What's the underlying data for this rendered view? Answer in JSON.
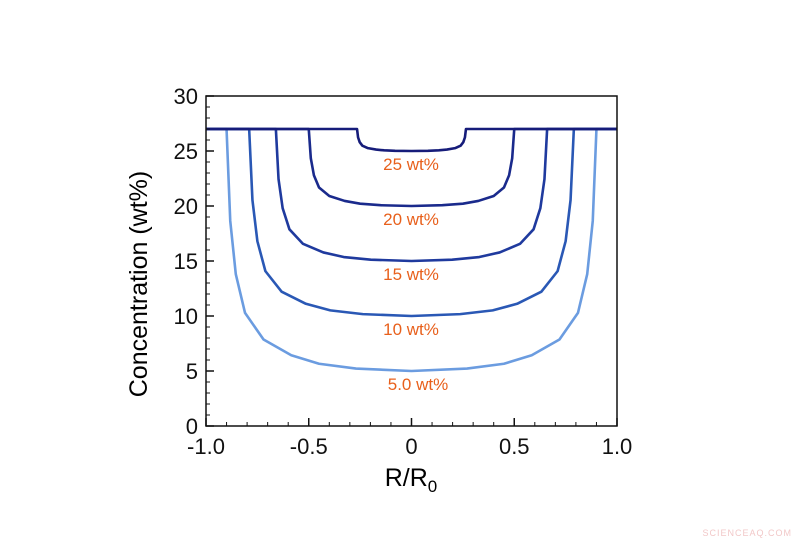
{
  "chart_data": {
    "type": "line",
    "xlabel": "R/R",
    "xlabel_subscript": "0",
    "ylabel": "Concentration (wt%)",
    "xlim": [
      -1,
      1
    ],
    "ylim": [
      0,
      30
    ],
    "xticks": [
      {
        "value": -1,
        "label": "-1.0"
      },
      -0.5,
      0,
      0.5,
      {
        "value": 1,
        "label": "1.0"
      }
    ],
    "yticks": [
      0,
      5,
      10,
      15,
      20,
      25,
      30
    ],
    "annotations": [
      "25 wt%",
      "20 wt%",
      "15 wt%",
      "10 wt%",
      "5.0 wt%"
    ],
    "watermark": "SCIENCEAQ.COM",
    "series": [
      {
        "color": "#6b9ce0",
        "x": [
          -1,
          -0.9,
          -0.882,
          -0.855,
          -0.81,
          -0.72,
          -0.585,
          -0.45,
          -0.27,
          0,
          0.27,
          0.45,
          0.585,
          0.72,
          0.81,
          0.855,
          0.882,
          0.9,
          1
        ],
        "values": [
          27,
          27,
          18.64,
          13.8,
          10.28,
          7.86,
          6.43,
          5.66,
          5.22,
          5,
          5.22,
          5.66,
          6.43,
          7.86,
          10.28,
          13.8,
          18.64,
          27,
          27
        ]
      },
      {
        "color": "#2a58b5",
        "x": [
          -1,
          -0.79,
          -0.774,
          -0.75,
          -0.711,
          -0.632,
          -0.514,
          -0.395,
          -0.237,
          0,
          0.237,
          0.395,
          0.514,
          0.632,
          0.711,
          0.75,
          0.774,
          0.79,
          1
        ],
        "values": [
          27,
          27,
          20.54,
          16.8,
          14.08,
          12.21,
          11.11,
          10.51,
          10.17,
          10,
          10.17,
          10.51,
          11.11,
          12.21,
          14.08,
          16.8,
          20.54,
          27,
          27
        ]
      },
      {
        "color": "#1f3a9e",
        "x": [
          -1,
          -0.66,
          -0.647,
          -0.627,
          -0.594,
          -0.528,
          -0.429,
          -0.33,
          -0.198,
          0,
          0.198,
          0.33,
          0.429,
          0.528,
          0.594,
          0.627,
          0.647,
          0.66,
          1
        ],
        "values": [
          27,
          27,
          22.44,
          19.8,
          17.88,
          16.56,
          15.78,
          15.36,
          15.12,
          15,
          15.12,
          15.36,
          15.78,
          16.56,
          17.88,
          19.8,
          22.44,
          27,
          27
        ]
      },
      {
        "color": "#1a2a8c",
        "x": [
          -1,
          -0.5,
          -0.49,
          -0.475,
          -0.45,
          -0.4,
          -0.325,
          -0.25,
          -0.15,
          0,
          0.15,
          0.25,
          0.325,
          0.4,
          0.45,
          0.475,
          0.49,
          0.5,
          1
        ],
        "values": [
          27,
          27,
          24.34,
          22.8,
          21.68,
          20.91,
          20.46,
          20.21,
          20.07,
          20,
          20.07,
          20.21,
          20.46,
          20.91,
          21.68,
          22.8,
          24.34,
          27,
          27
        ]
      },
      {
        "color": "#161c7a",
        "x": [
          -1,
          -0.265,
          -0.26,
          -0.252,
          -0.239,
          -0.212,
          -0.172,
          -0.133,
          -0.08,
          0,
          0.08,
          0.133,
          0.172,
          0.212,
          0.239,
          0.252,
          0.26,
          0.265,
          1
        ],
        "values": [
          27,
          27,
          26.24,
          25.8,
          25.48,
          25.26,
          25.13,
          25.06,
          25.02,
          25,
          25.02,
          25.06,
          25.13,
          25.26,
          25.48,
          25.8,
          26.24,
          27,
          27
        ]
      }
    ]
  }
}
